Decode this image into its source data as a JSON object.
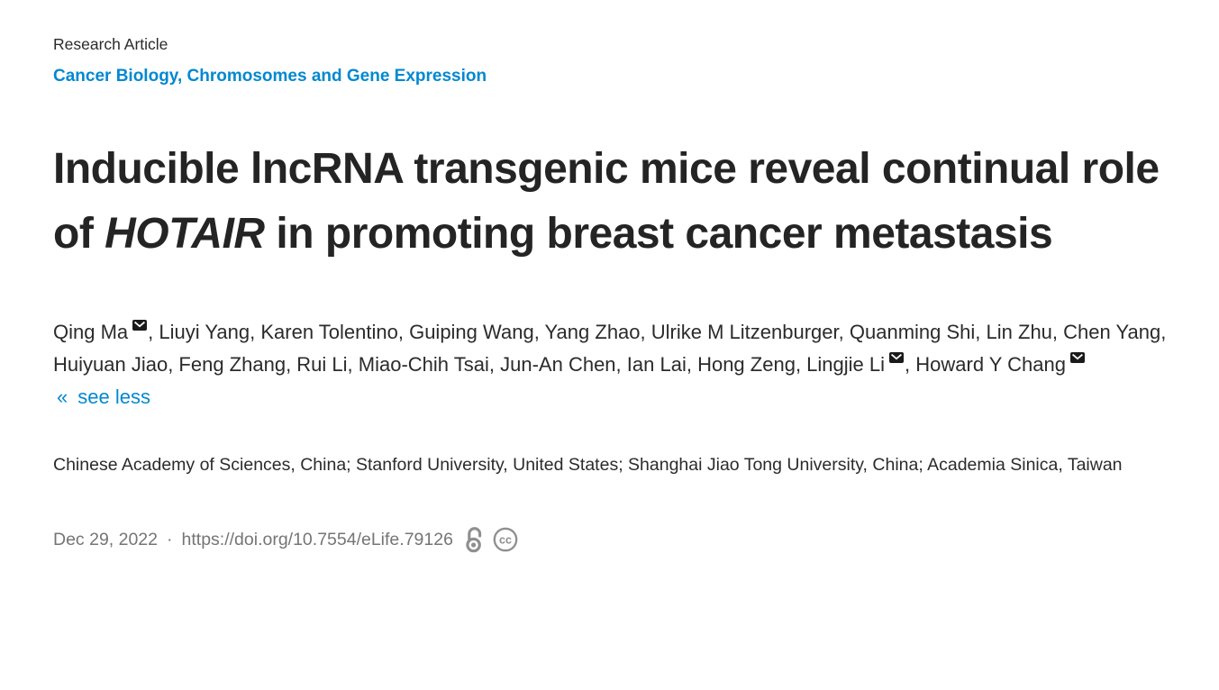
{
  "header": {
    "article_type": "Research Article",
    "subject_areas": "Cancer Biology, Chromosomes and Gene Expression"
  },
  "title": {
    "pre": "Inducible lncRNA transgenic mice reveal continual role of ",
    "italic": "HOTAIR",
    "post": " in promoting breast cancer metastasis"
  },
  "authors": [
    {
      "name": "Qing Ma",
      "email": true
    },
    {
      "name": "Liuyi Yang",
      "email": false
    },
    {
      "name": "Karen Tolentino",
      "email": false
    },
    {
      "name": "Guiping Wang",
      "email": false
    },
    {
      "name": "Yang Zhao",
      "email": false
    },
    {
      "name": "Ulrike M Litzenburger",
      "email": false
    },
    {
      "name": "Quanming Shi",
      "email": false
    },
    {
      "name": "Lin Zhu",
      "email": false
    },
    {
      "name": "Chen Yang",
      "email": false
    },
    {
      "name": "Huiyuan Jiao",
      "email": false
    },
    {
      "name": "Feng Zhang",
      "email": false
    },
    {
      "name": "Rui Li",
      "email": false
    },
    {
      "name": "Miao-Chih Tsai",
      "email": false
    },
    {
      "name": "Jun-An Chen",
      "email": false
    },
    {
      "name": "Ian Lai",
      "email": false
    },
    {
      "name": "Hong Zeng",
      "email": false
    },
    {
      "name": "Lingjie Li",
      "email": true
    },
    {
      "name": "Howard Y Chang",
      "email": true
    }
  ],
  "authors_toggle": {
    "chevron": "«",
    "label": "see less"
  },
  "affiliations": "Chinese Academy of Sciences, China; Stanford University, United States; Shanghai Jiao Tong University, China; Academia Sinica, Taiwan",
  "meta": {
    "date": "Dec 29, 2022",
    "separator": "·",
    "doi": "https://doi.org/10.7554/eLife.79126"
  },
  "icons": {
    "email": "black envelope superscript",
    "open_access": "open padlock",
    "license": "creative commons",
    "cc_glyph": "cc"
  },
  "colors": {
    "link_blue": "#0288d1",
    "text_dark": "#242424",
    "meta_gray": "#757575",
    "icon_gray": "#8f8f8f"
  }
}
